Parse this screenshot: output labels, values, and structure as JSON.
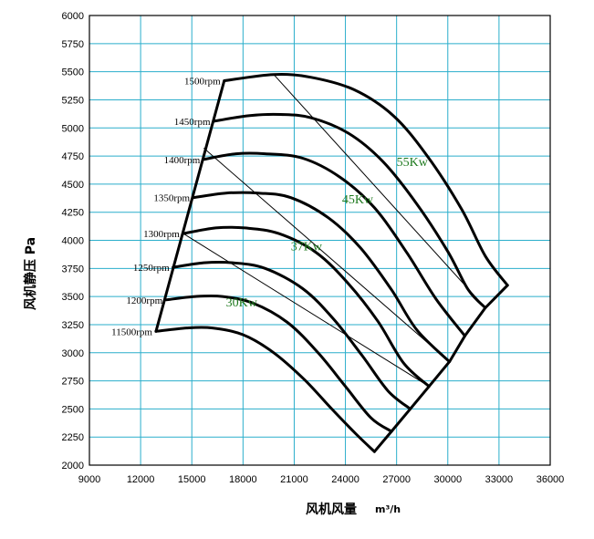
{
  "chart_data": {
    "type": "line",
    "xlabel": "风机风量",
    "xunit": "m³/h",
    "ylabel": "风机静压 Pa",
    "xlim": [
      9000,
      36000
    ],
    "ylim": [
      2000,
      6000
    ],
    "x_ticks": [
      9000,
      12000,
      15000,
      18000,
      21000,
      24000,
      27000,
      30000,
      33000,
      36000
    ],
    "y_ticks": [
      2000,
      2250,
      2500,
      2750,
      3000,
      3250,
      3500,
      3750,
      4000,
      4250,
      4500,
      4750,
      5000,
      5250,
      5500,
      5750,
      6000
    ],
    "grid": true,
    "speed_curves": [
      {
        "label": "1500rpm",
        "points": [
          [
            16900,
            5420
          ],
          [
            19800,
            5475
          ],
          [
            22000,
            5450
          ],
          [
            24500,
            5340
          ],
          [
            26800,
            5110
          ],
          [
            28800,
            4750
          ],
          [
            30800,
            4280
          ],
          [
            32200,
            3860
          ],
          [
            33500,
            3600
          ]
        ]
      },
      {
        "label": "1450rpm",
        "points": [
          [
            16300,
            5060
          ],
          [
            18400,
            5110
          ],
          [
            20200,
            5120
          ],
          [
            22000,
            5090
          ],
          [
            24200,
            4950
          ],
          [
            26200,
            4700
          ],
          [
            28200,
            4320
          ],
          [
            30000,
            3900
          ],
          [
            31200,
            3560
          ],
          [
            32200,
            3400
          ]
        ]
      },
      {
        "label": "1400rpm",
        "points": [
          [
            15700,
            4720
          ],
          [
            17600,
            4770
          ],
          [
            19300,
            4770
          ],
          [
            21500,
            4730
          ],
          [
            23700,
            4560
          ],
          [
            25700,
            4290
          ],
          [
            27600,
            3890
          ],
          [
            29300,
            3480
          ],
          [
            31000,
            3150
          ]
        ]
      },
      {
        "label": "1350rpm",
        "points": [
          [
            15100,
            4380
          ],
          [
            17000,
            4420
          ],
          [
            18900,
            4420
          ],
          [
            20800,
            4380
          ],
          [
            23000,
            4200
          ],
          [
            24900,
            3930
          ],
          [
            26700,
            3560
          ],
          [
            28200,
            3200
          ],
          [
            30100,
            2920
          ]
        ]
      },
      {
        "label": "1300rpm",
        "points": [
          [
            14500,
            4060
          ],
          [
            16400,
            4110
          ],
          [
            18100,
            4110
          ],
          [
            20100,
            4060
          ],
          [
            22300,
            3890
          ],
          [
            24200,
            3610
          ],
          [
            25900,
            3280
          ],
          [
            27400,
            2910
          ],
          [
            28900,
            2700
          ]
        ]
      },
      {
        "label": "1250rpm",
        "points": [
          [
            13900,
            3760
          ],
          [
            15700,
            3800
          ],
          [
            17400,
            3800
          ],
          [
            19300,
            3750
          ],
          [
            21500,
            3570
          ],
          [
            23300,
            3300
          ],
          [
            25000,
            2970
          ],
          [
            26500,
            2660
          ],
          [
            27800,
            2500
          ]
        ]
      },
      {
        "label": "1200rpm",
        "points": [
          [
            13500,
            3470
          ],
          [
            15200,
            3500
          ],
          [
            16800,
            3500
          ],
          [
            18600,
            3440
          ],
          [
            20600,
            3270
          ],
          [
            22400,
            3000
          ],
          [
            24000,
            2700
          ],
          [
            25500,
            2420
          ],
          [
            26700,
            2300
          ]
        ]
      },
      {
        "label": "11500rpm",
        "points": [
          [
            12900,
            3190
          ],
          [
            14700,
            3220
          ],
          [
            16200,
            3220
          ],
          [
            18000,
            3160
          ],
          [
            19800,
            3000
          ],
          [
            21600,
            2760
          ],
          [
            23200,
            2500
          ],
          [
            24600,
            2280
          ],
          [
            25700,
            2120
          ]
        ]
      }
    ],
    "envelope_left": [
      [
        12900,
        3190
      ],
      [
        16900,
        5420
      ]
    ],
    "power_lines": [
      {
        "label": "55Kw",
        "start": [
          19800,
          5475
        ],
        "end": [
          32200,
          3400
        ]
      },
      {
        "label": "45Kw",
        "start": [
          15700,
          4820
        ],
        "end": [
          30100,
          2920
        ]
      },
      {
        "label": "37Kw",
        "start": [
          14500,
          4060
        ],
        "end": [
          28900,
          2700
        ]
      },
      {
        "label": "30Kw",
        "start": null,
        "end": null
      }
    ],
    "power_labels": [
      {
        "text": "55Kw",
        "x": 27000,
        "y": 4660
      },
      {
        "text": "45Kw",
        "x": 23800,
        "y": 4330
      },
      {
        "text": "37Kw",
        "x": 20800,
        "y": 3910
      },
      {
        "text": "30Kw",
        "x": 17000,
        "y": 3410
      }
    ]
  }
}
